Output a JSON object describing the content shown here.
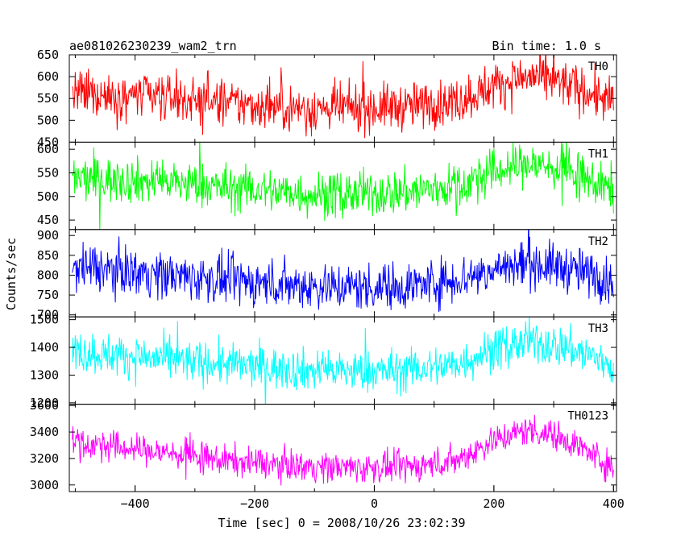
{
  "header": {
    "left_title": "ae081026230239_wam2_trn",
    "right_title": "Bin time: 1.0 s"
  },
  "chart_data": {
    "type": "line",
    "title": "ae081026230239_wam2_trn",
    "subtitle": "Bin time: 1.0 s",
    "xlabel": "Time [sec] 0 = 2008/10/26 23:02:39",
    "ylabel": "Counts/sec",
    "xlim": [
      -510,
      405
    ],
    "x_ticks": [
      -400,
      -200,
      0,
      200,
      400
    ],
    "x_tick_labels": [
      "−400",
      "−200",
      "0",
      "200",
      "400"
    ],
    "grid": false,
    "legend": "none",
    "panels": [
      {
        "name": "TH0",
        "color": "#ff0000",
        "ylim": [
          450,
          650
        ],
        "y_ticks": [
          450,
          500,
          550,
          600,
          650
        ],
        "trend": {
          "t": [
            -500,
            -420,
            -340,
            -260,
            -180,
            -100,
            -20,
            60,
            140,
            200,
            260,
            320,
            380,
            400
          ],
          "v": [
            560,
            558,
            552,
            540,
            532,
            526,
            528,
            532,
            545,
            580,
            600,
            583,
            552,
            540
          ]
        },
        "noise": 27
      },
      {
        "name": "TH1",
        "color": "#00ff00",
        "ylim": [
          430,
          615
        ],
        "y_ticks": [
          450,
          500,
          550,
          600
        ],
        "trend": {
          "t": [
            -500,
            -420,
            -340,
            -260,
            -180,
            -100,
            -20,
            60,
            140,
            200,
            260,
            320,
            380,
            400
          ],
          "v": [
            538,
            535,
            530,
            520,
            512,
            505,
            505,
            510,
            522,
            552,
            570,
            555,
            522,
            512
          ]
        },
        "noise": 24
      },
      {
        "name": "TH2",
        "color": "#0000ff",
        "ylim": [
          695,
          915
        ],
        "y_ticks": [
          700,
          750,
          800,
          850,
          900
        ],
        "trend": {
          "t": [
            -500,
            -420,
            -340,
            -260,
            -180,
            -100,
            -20,
            60,
            140,
            200,
            260,
            320,
            380,
            400
          ],
          "v": [
            820,
            812,
            800,
            788,
            780,
            773,
            770,
            773,
            790,
            815,
            830,
            818,
            795,
            782
          ]
        },
        "noise": 30
      },
      {
        "name": "TH3",
        "color": "#00ffff",
        "ylim": [
          1195,
          1510
        ],
        "y_ticks": [
          1200,
          1300,
          1400,
          1500
        ],
        "trend": {
          "t": [
            -500,
            -420,
            -340,
            -260,
            -180,
            -100,
            -20,
            60,
            140,
            200,
            260,
            320,
            380,
            400
          ],
          "v": [
            1385,
            1370,
            1355,
            1340,
            1328,
            1318,
            1312,
            1318,
            1340,
            1395,
            1420,
            1400,
            1355,
            1330
          ]
        },
        "noise": 38
      },
      {
        "name": "TH0123",
        "color": "#ff00ff",
        "ylim": [
          2950,
          3610
        ],
        "y_ticks": [
          3000,
          3200,
          3400,
          3600
        ],
        "trend": {
          "t": [
            -500,
            -420,
            -340,
            -260,
            -180,
            -100,
            -20,
            60,
            140,
            200,
            260,
            320,
            380,
            400
          ],
          "v": [
            3320,
            3280,
            3240,
            3190,
            3160,
            3140,
            3130,
            3135,
            3190,
            3340,
            3420,
            3350,
            3190,
            3110
          ]
        },
        "noise": 58
      }
    ]
  }
}
